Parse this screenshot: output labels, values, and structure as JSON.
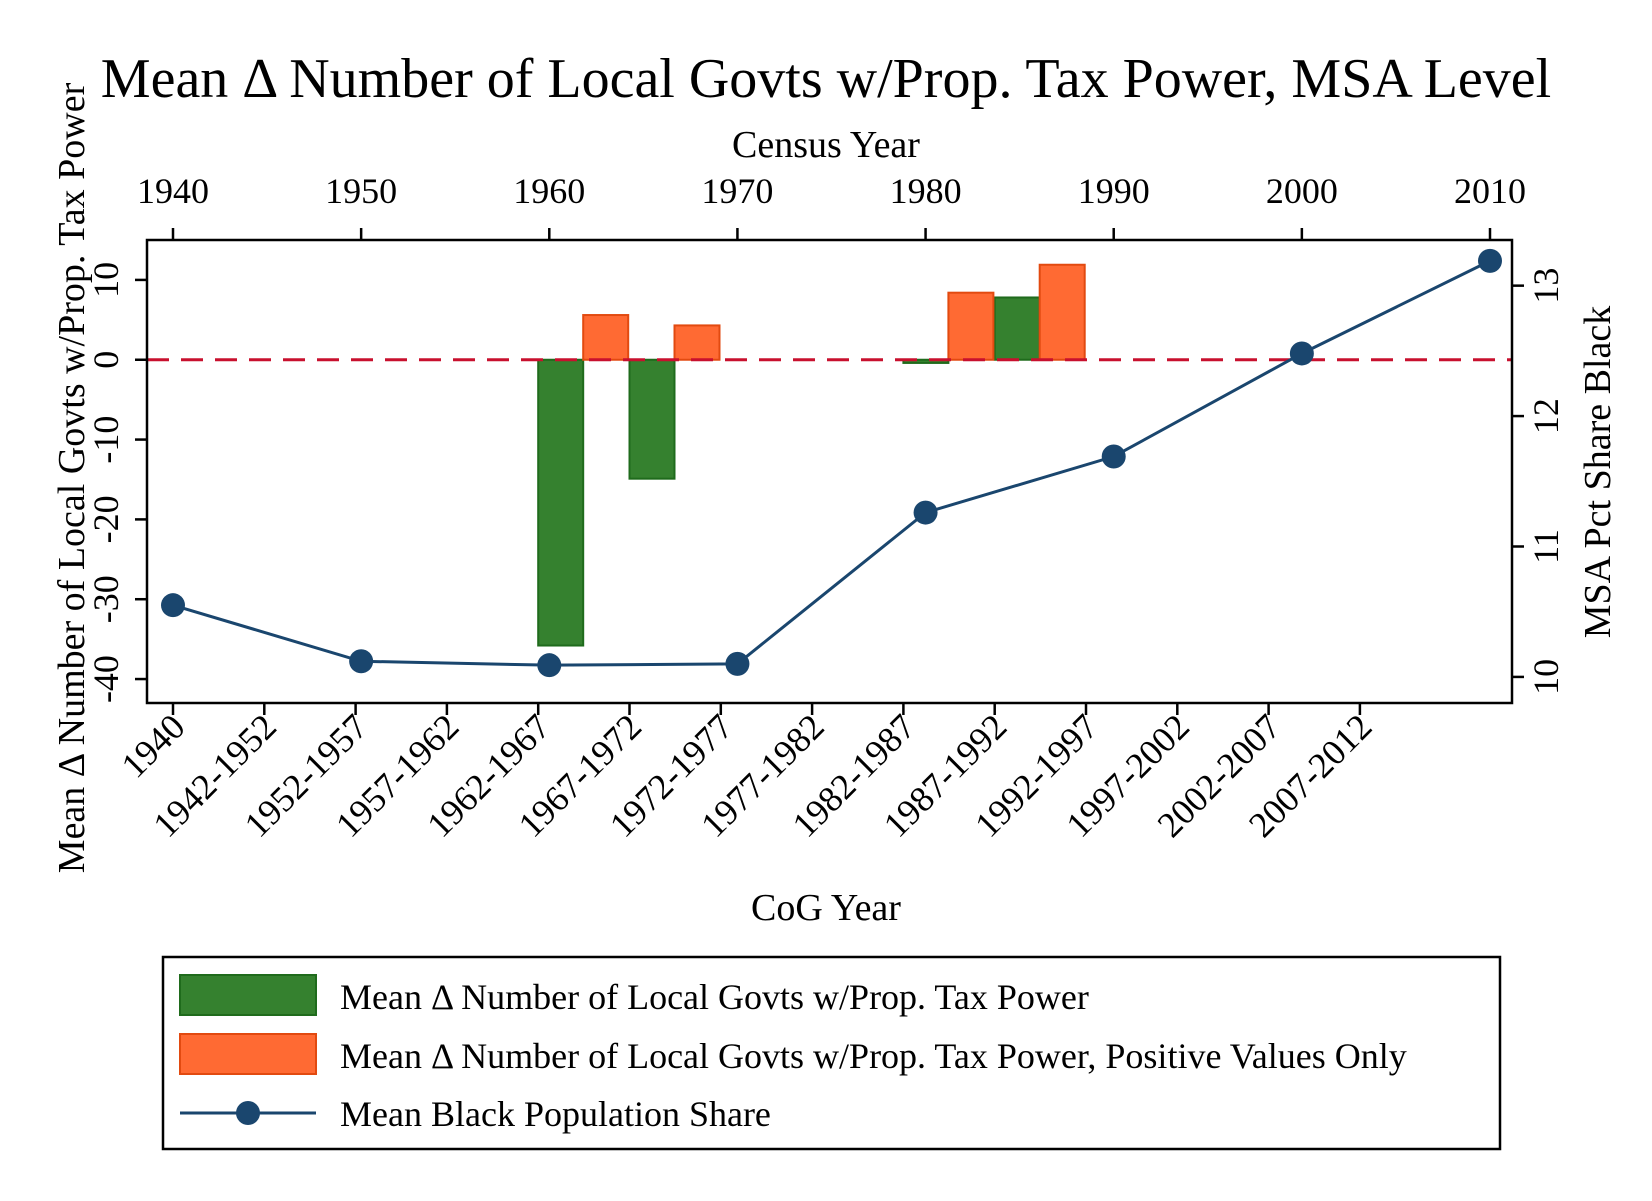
{
  "chart_data": {
    "type": "bar+line",
    "title": "Mean Δ Number of Local Govts w/Prop. Tax Power, MSA Level",
    "top_axis": {
      "label": "Census Year",
      "ticks": [
        "1940",
        "1950",
        "1960",
        "1970",
        "1980",
        "1990",
        "2000",
        "2010"
      ],
      "range": [
        1940,
        2010
      ]
    },
    "bottom_axis": {
      "label": "CoG Year",
      "ticks": [
        "1940",
        "1942-1952",
        "1952-1957",
        "1957-1962",
        "1962-1967",
        "1967-1972",
        "1972-1977",
        "1977-1982",
        "1982-1987",
        "1987-1992",
        "1992-1997",
        "1997-2002",
        "2002-2007",
        "2007-2012"
      ]
    },
    "left_axis": {
      "label": "Mean Δ Number of Local Govts w/Prop. Tax Power",
      "ticks": [
        "-40",
        "-30",
        "-20",
        "-10",
        "0",
        "10"
      ],
      "ylim": [
        -43,
        15
      ]
    },
    "right_axis": {
      "label": "MSA Pct Share Black",
      "ticks": [
        "10",
        "11",
        "12",
        "13"
      ],
      "ylim": [
        9.8,
        13.35
      ]
    },
    "reference_line": {
      "value": 0,
      "color": "#c8102e",
      "style": "dashed"
    },
    "series": [
      {
        "name": "Mean Δ Number of Local Govts w/Prop. Tax Power",
        "type": "bar",
        "color": "#35812f",
        "edge": "#1f6b1c",
        "points": [
          {
            "category": "1962-1967",
            "value": -35.8
          },
          {
            "category": "1967-1972",
            "value": -14.9
          },
          {
            "category": "1982-1987",
            "value": -0.4
          },
          {
            "category": "1987-1992",
            "value": 7.8
          }
        ]
      },
      {
        "name": "Mean Δ Number of Local Govts w/Prop. Tax Power, Positive Values Only",
        "type": "bar",
        "color": "#ff6a33",
        "edge": "#e24a10",
        "points": [
          {
            "category": "1962-1967",
            "value": 5.6
          },
          {
            "category": "1967-1972",
            "value": 4.3
          },
          {
            "category": "1982-1987",
            "value": 8.4
          },
          {
            "category": "1987-1992",
            "value": 11.9
          }
        ]
      },
      {
        "name": "Mean Black Population Share",
        "type": "line",
        "color": "#1a466e",
        "points": [
          {
            "x": 1940,
            "y": 10.55
          },
          {
            "x": 1950,
            "y": 10.12
          },
          {
            "x": 1960,
            "y": 10.09
          },
          {
            "x": 1970,
            "y": 10.1
          },
          {
            "x": 1980,
            "y": 11.26
          },
          {
            "x": 1990,
            "y": 11.69
          },
          {
            "x": 2000,
            "y": 12.48
          },
          {
            "x": 2010,
            "y": 13.19
          }
        ]
      }
    ],
    "legend": {
      "placement": "bottom"
    }
  }
}
